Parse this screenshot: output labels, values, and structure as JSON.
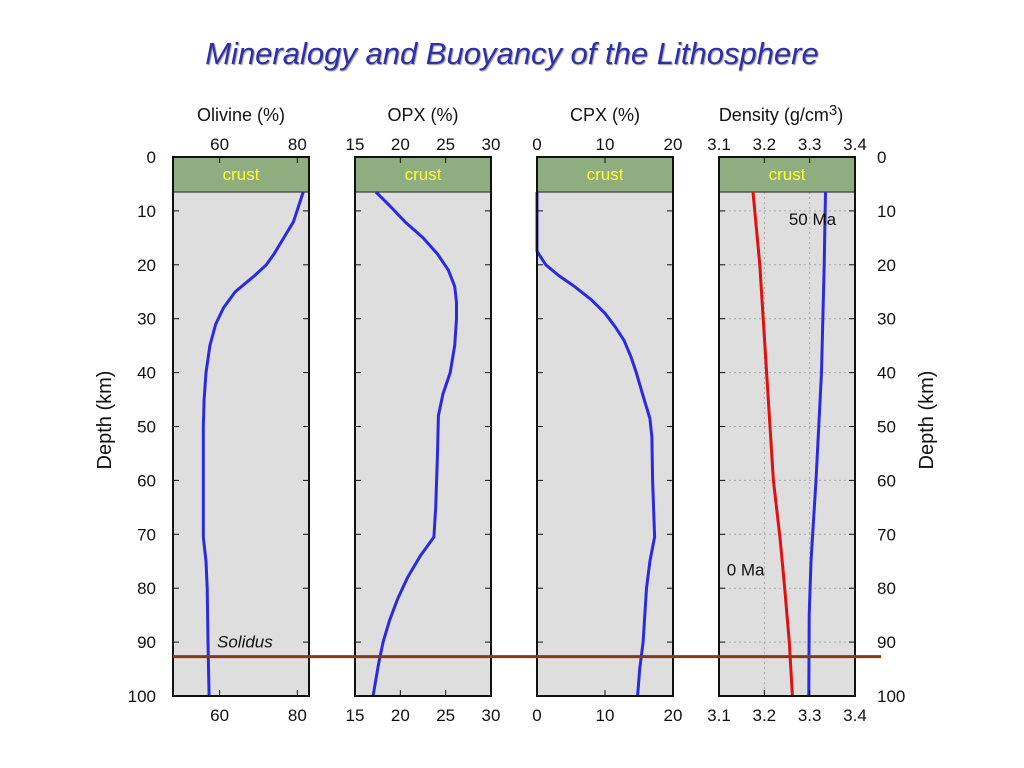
{
  "title": "Mineralogy and Buoyancy of the Lithosphere",
  "colors": {
    "title": "#2f2fa8",
    "panel_bg": "#dedede",
    "crust_fill": "#8fae80",
    "crust_text": "#ffff33",
    "blue_line": "#2a2ae0",
    "red_line": "#e01010",
    "solidus": "#8a3a10",
    "solidus_text": "#8a0000"
  },
  "chart_data": {
    "type": "line",
    "depth_axis": {
      "label": "Depth (km)",
      "range": [
        0,
        100
      ],
      "ticks": [
        "0",
        "10",
        "20",
        "30",
        "40",
        "50",
        "60",
        "70",
        "80",
        "90",
        "100"
      ],
      "inverted": true
    },
    "crust": {
      "label": "crust",
      "depth_range": [
        0,
        6.5
      ]
    },
    "solidus": {
      "label": "Solidus",
      "depth": 92.7
    },
    "panels": [
      {
        "header": "Olivine (%)",
        "xlim": [
          48,
          83
        ],
        "ticks": [
          60,
          80
        ],
        "tick_labels": [
          "60",
          "80"
        ],
        "grid": false,
        "series": [
          {
            "color": "blue",
            "points": [
              [
                81.5,
                6.5
              ],
              [
                79,
                12
              ],
              [
                74,
                18
              ],
              [
                72,
                20
              ],
              [
                69,
                22
              ],
              [
                64,
                25
              ],
              [
                61,
                28
              ],
              [
                59,
                31
              ],
              [
                57.5,
                35
              ],
              [
                56.5,
                40
              ],
              [
                56,
                45
              ],
              [
                55.8,
                50
              ],
              [
                55.8,
                60
              ],
              [
                55.8,
                70.5
              ],
              [
                56.5,
                75
              ],
              [
                56.8,
                80
              ],
              [
                57,
                90
              ],
              [
                57.3,
                100
              ]
            ]
          }
        ]
      },
      {
        "header": "OPX (%)",
        "xlim": [
          15,
          30
        ],
        "ticks": [
          15,
          20,
          25,
          30
        ],
        "tick_labels": [
          "15",
          "20",
          "25",
          "30"
        ],
        "grid": false,
        "series": [
          {
            "color": "blue",
            "points": [
              [
                17.3,
                6.5
              ],
              [
                18.8,
                9
              ],
              [
                20.5,
                12
              ],
              [
                22.5,
                15
              ],
              [
                24.1,
                18
              ],
              [
                25.3,
                21
              ],
              [
                26,
                24
              ],
              [
                26.2,
                27
              ],
              [
                26.2,
                30
              ],
              [
                26,
                35
              ],
              [
                25.5,
                40
              ],
              [
                24.7,
                44
              ],
              [
                24.2,
                48
              ],
              [
                24.1,
                55
              ],
              [
                23.9,
                65
              ],
              [
                23.7,
                70.5
              ],
              [
                22.2,
                74
              ],
              [
                20.8,
                78
              ],
              [
                19.7,
                82
              ],
              [
                18.8,
                86
              ],
              [
                18.1,
                90
              ],
              [
                17.6,
                94
              ],
              [
                17.2,
                98
              ],
              [
                17,
                100
              ]
            ]
          }
        ]
      },
      {
        "header": "CPX (%)",
        "xlim": [
          0,
          20
        ],
        "ticks": [
          0,
          10,
          20
        ],
        "tick_labels": [
          "0",
          "10",
          "20"
        ],
        "grid": false,
        "series": [
          {
            "color": "blue",
            "points": [
              [
                0,
                6.5
              ],
              [
                0,
                17.5
              ],
              [
                1.3,
                20
              ],
              [
                3.2,
                22
              ],
              [
                5.5,
                24
              ],
              [
                8,
                26.5
              ],
              [
                10,
                29
              ],
              [
                11.5,
                31.5
              ],
              [
                12.8,
                34
              ],
              [
                13.8,
                37
              ],
              [
                14.6,
                40
              ],
              [
                15.3,
                43
              ],
              [
                16,
                46
              ],
              [
                16.6,
                48.5
              ],
              [
                16.9,
                52
              ],
              [
                17,
                60
              ],
              [
                17.3,
                70.5
              ],
              [
                16.6,
                75
              ],
              [
                16.1,
                80
              ],
              [
                15.6,
                90
              ],
              [
                15.1,
                95
              ],
              [
                14.8,
                100
              ]
            ]
          }
        ]
      },
      {
        "header": "Density (g/cm",
        "header_sup": "3",
        "header_tail": ")",
        "xlim": [
          3.1,
          3.4
        ],
        "ticks": [
          3.1,
          3.2,
          3.3,
          3.4
        ],
        "tick_labels": [
          "3.1",
          "3.2",
          "3.3",
          "3.4"
        ],
        "grid": true,
        "series": [
          {
            "name": "50 Ma",
            "color": "blue",
            "points": [
              [
                3.335,
                6.5
              ],
              [
                3.332,
                20
              ],
              [
                3.326,
                40
              ],
              [
                3.314,
                60
              ],
              [
                3.303,
                75
              ],
              [
                3.299,
                85
              ],
              [
                3.298,
                100
              ]
            ]
          },
          {
            "name": "0 Ma",
            "color": "red",
            "points": [
              [
                3.175,
                6.5
              ],
              [
                3.19,
                20
              ],
              [
                3.205,
                40
              ],
              [
                3.22,
                60
              ],
              [
                3.235,
                71
              ],
              [
                3.245,
                80
              ],
              [
                3.255,
                90
              ],
              [
                3.262,
                100
              ]
            ]
          }
        ]
      }
    ]
  }
}
